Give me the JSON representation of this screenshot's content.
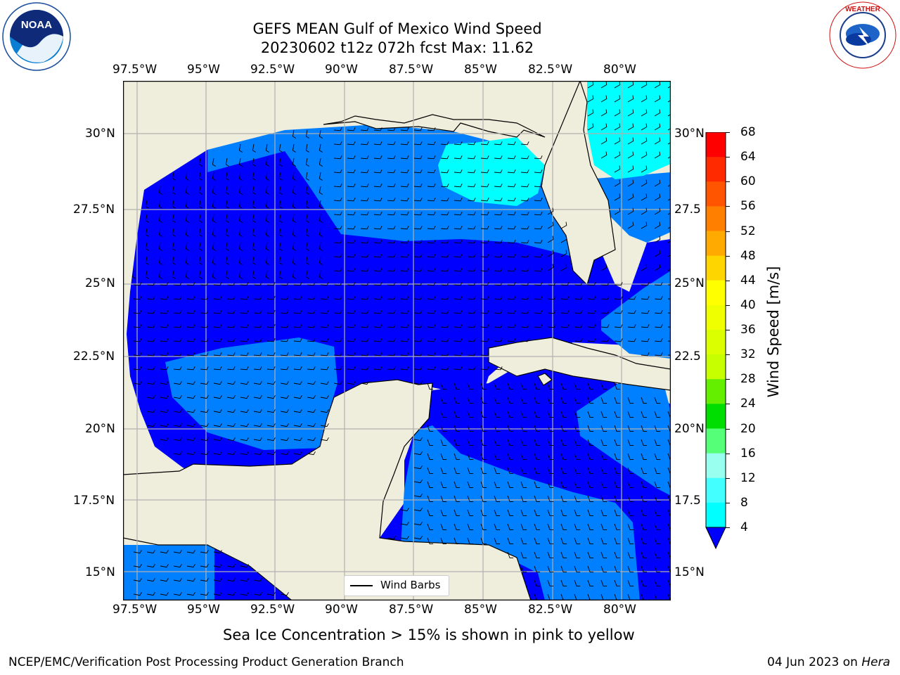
{
  "header": {
    "title_line1": "GEFS MEAN Gulf of Mexico Wind Speed",
    "title_line2": "20230602 t12z 072h fcst   Max: 11.62"
  },
  "map": {
    "lon_labels": [
      "97.5°W",
      "95°W",
      "92.5°W",
      "90°W",
      "87.5°W",
      "85°W",
      "82.5°W",
      "80°W"
    ],
    "lat_labels": [
      "30°N",
      "27.5°N",
      "25°N",
      "22.5°N",
      "20°N",
      "17.5°N",
      "15°N"
    ],
    "lat_labels_right": [
      "30°N",
      "27.5",
      "25°N",
      "22.5",
      "20°N",
      "17.5",
      "15°N"
    ],
    "legend_label": "Wind Barbs"
  },
  "colorbar": {
    "label": "Wind Speed [m/s]",
    "ticks": [
      "68",
      "64",
      "60",
      "56",
      "52",
      "48",
      "44",
      "40",
      "36",
      "32",
      "28",
      "24",
      "20",
      "16",
      "12",
      "8",
      "4"
    ],
    "colors": [
      "#ff0000",
      "#ff2a00",
      "#ff5500",
      "#ff8000",
      "#ffaa00",
      "#ffd500",
      "#ffff00",
      "#f0ff00",
      "#dcff00",
      "#c8ff00",
      "#64ee00",
      "#00dd00",
      "#55ff77",
      "#99ffee",
      "#44ffff",
      "#00ffff",
      "#0080ff"
    ],
    "extend_color": "#0000ff"
  },
  "colors": {
    "land": "#efeedd",
    "ocean_dark": "#0000ff",
    "ocean_mid": "#0080ff",
    "ocean_light": "#00ffff"
  },
  "caption": "Sea Ice Concentration > 15% is shown in pink to yellow",
  "footer": {
    "left": "NCEP/EMC/Verification Post Processing Product Generation Branch",
    "right_date": "04 Jun 2023 on ",
    "right_host": "Hera"
  }
}
